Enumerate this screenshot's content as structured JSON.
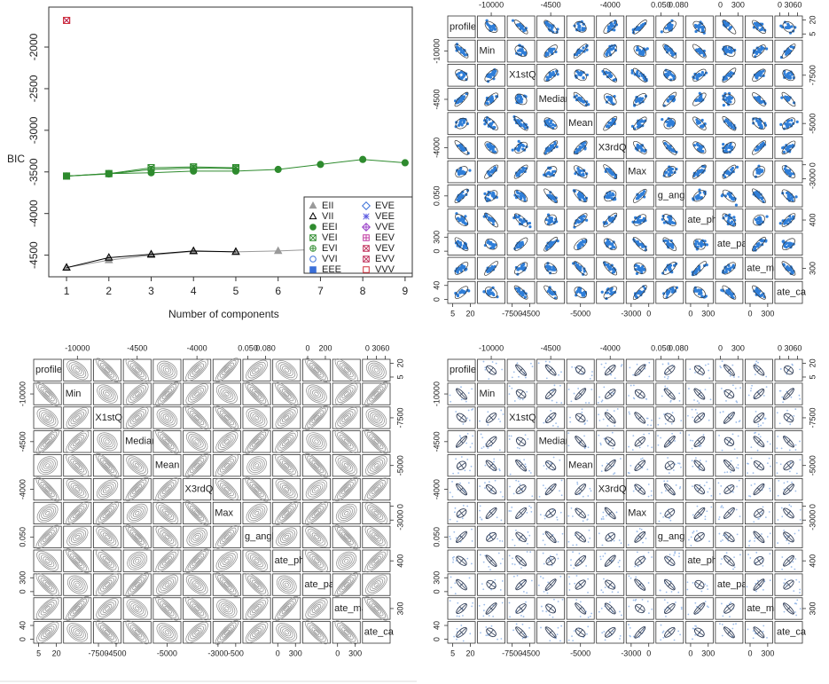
{
  "chart_data": [
    {
      "type": "line",
      "y_label": "BIC",
      "x_label": "Number of components",
      "x": [
        1,
        2,
        3,
        4,
        5,
        6,
        7,
        8,
        9
      ],
      "xlim": [
        0.58,
        9.17
      ],
      "ylim": [
        -4760,
        -1520
      ],
      "xticks": [
        1,
        2,
        3,
        4,
        5,
        6,
        7,
        8,
        9
      ],
      "yticks": [
        -2000,
        -2500,
        -3000,
        -3500,
        -4000,
        -4500
      ],
      "legend": "bottom-right",
      "series": [
        {
          "name": "EII",
          "color": "#9a9a9a",
          "symbol": "triangle",
          "filled": true,
          "values": [
            -4650,
            -4560,
            -4500,
            -4455,
            -4460,
            -4450,
            -4430,
            null,
            null
          ]
        },
        {
          "name": "VII",
          "color": "#000000",
          "symbol": "triangle",
          "filled": false,
          "values": [
            -4650,
            -4530,
            -4490,
            -4450,
            -4460,
            null,
            null,
            null,
            null
          ]
        },
        {
          "name": "EEI",
          "color": "#2e8b2e",
          "symbol": "circle",
          "filled": true,
          "values": [
            -3550,
            -3520,
            -3510,
            -3490,
            -3490,
            -3470,
            -3410,
            -3350,
            -3390
          ]
        },
        {
          "name": "VEI",
          "color": "#2e8b2e",
          "symbol": "x-square",
          "filled": false,
          "values": [
            -3550,
            -3520,
            -3450,
            -3440,
            -3450,
            null,
            null,
            null,
            null
          ]
        },
        {
          "name": "EVI",
          "color": "#2e8b2e",
          "symbol": "plus-circle",
          "filled": false,
          "values": [
            -3550,
            -3525,
            -3470,
            -3455,
            -3460,
            null,
            null,
            null,
            null
          ]
        },
        {
          "name": "VVI",
          "color": "#3a6fd8",
          "symbol": "circle",
          "filled": false,
          "values": [
            null,
            null,
            null,
            null,
            null,
            null,
            null,
            null,
            null
          ]
        },
        {
          "name": "EEE",
          "color": "#3a6fd8",
          "symbol": "square",
          "filled": true,
          "values": [
            null,
            null,
            null,
            null,
            null,
            null,
            null,
            null,
            null
          ]
        },
        {
          "name": "EVE",
          "color": "#3a6fd8",
          "symbol": "diamond",
          "filled": false,
          "values": [
            null,
            null,
            null,
            null,
            null,
            null,
            null,
            null,
            null
          ]
        },
        {
          "name": "VEE",
          "color": "#5a5ae0",
          "symbol": "asterisk",
          "filled": false,
          "values": [
            null,
            null,
            null,
            null,
            null,
            null,
            null,
            null,
            null
          ]
        },
        {
          "name": "VVE",
          "color": "#9a40c8",
          "symbol": "diamond-plus",
          "filled": false,
          "values": [
            null,
            null,
            null,
            null,
            null,
            null,
            null,
            null,
            null
          ]
        },
        {
          "name": "EEV",
          "color": "#c03aa0",
          "symbol": "plus-square",
          "filled": false,
          "values": [
            null,
            null,
            null,
            null,
            null,
            null,
            null,
            null,
            null
          ]
        },
        {
          "name": "VEV",
          "color": "#c0305a",
          "symbol": "x-square",
          "filled": false,
          "values": [
            -1680,
            null,
            null,
            null,
            null,
            null,
            null,
            null,
            null
          ]
        },
        {
          "name": "EVV",
          "color": "#c0305a",
          "symbol": "x-square",
          "filled": false,
          "values": [
            -1680,
            null,
            null,
            null,
            null,
            null,
            null,
            null,
            null
          ]
        },
        {
          "name": "VVV",
          "color": "#d0303a",
          "symbol": "square",
          "filled": false,
          "values": [
            -1680,
            null,
            null,
            null,
            null,
            null,
            null,
            null,
            null
          ]
        }
      ]
    },
    {
      "type": "scatter-matrix",
      "color": "#2f7ed8",
      "variables": [
        "profile",
        "Min",
        "X1stQ",
        "Median",
        "Mean",
        "X3rdQ",
        "Max",
        "g_angl",
        "ate_ph",
        "ate_pa",
        "ate_ma",
        "ate_ca"
      ],
      "top_ticks": [
        [],
        [
          -10000
        ],
        [],
        [
          -4500
        ],
        [],
        [
          -4000
        ],
        [],
        [
          {
            "value": 0.05,
            "label": "0.050"
          },
          {
            "value": 0.08,
            "label": "0.080"
          }
        ],
        [],
        [
          0,
          300
        ],
        [],
        [
          0,
          30,
          60
        ]
      ],
      "bottom_ticks": [
        [
          5,
          20
        ],
        [],
        [
          -7500,
          -4500
        ],
        [],
        [
          -5000
        ],
        [],
        [
          -3000,
          0
        ],
        [],
        [
          0,
          300
        ],
        [],
        [
          0,
          300
        ],
        []
      ],
      "left_ticks": [
        [],
        [
          -10000
        ],
        [],
        [
          -4500
        ],
        [],
        [
          -4000
        ],
        [],
        [
          {
            "value": 0.05,
            "label": "0.050"
          }
        ],
        [],
        [
          0,
          300
        ],
        [],
        [
          0,
          40
        ]
      ],
      "right_ticks": [
        [
          5,
          20
        ],
        [],
        [
          -7500
        ],
        [],
        [
          -5000
        ],
        [],
        [
          -3000,
          0
        ],
        [],
        [
          400
        ],
        [],
        [
          300
        ],
        []
      ]
    },
    {
      "type": "contour-matrix",
      "color": "#8a8a8a",
      "variables": [
        "profile",
        "Min",
        "X1stQ",
        "Median",
        "Mean",
        "X3rdQ",
        "Max",
        "g_angl",
        "ate_ph",
        "ate_pa",
        "ate_ma",
        "ate_ca"
      ],
      "top_ticks": [
        [],
        [
          -10000
        ],
        [],
        [
          -4500
        ],
        [],
        [
          -4000
        ],
        [],
        [
          {
            "value": 0.05,
            "label": "0.050"
          },
          {
            "value": 0.08,
            "label": "0.080"
          }
        ],
        [],
        [
          0,
          200
        ],
        [],
        [
          0,
          30,
          60
        ]
      ],
      "bottom_ticks": [
        [
          5,
          20
        ],
        [],
        [
          -7500,
          -4500
        ],
        [],
        [
          -5000
        ],
        [],
        [
          -3000,
          -500
        ],
        [],
        [
          0,
          300
        ],
        [],
        [
          0,
          300
        ],
        []
      ],
      "left_ticks": [
        [],
        [
          -10000
        ],
        [],
        [
          -4500
        ],
        [],
        [
          -4000
        ],
        [],
        [
          {
            "value": 0.05,
            "label": "0.050"
          }
        ],
        [],
        [
          0,
          300
        ],
        [],
        [
          0,
          40
        ]
      ],
      "right_ticks": [
        [
          5,
          20
        ],
        [],
        [
          -7500
        ],
        [],
        [
          -5000
        ],
        [],
        [
          -3000,
          0
        ],
        [],
        [
          400
        ],
        [],
        [
          300
        ],
        []
      ]
    },
    {
      "type": "ellipse-matrix",
      "color": "#33405a",
      "variables": [
        "profile",
        "Min",
        "X1stQ",
        "Median",
        "Mean",
        "X3rdQ",
        "Max",
        "g_angl",
        "ate_ph",
        "ate_pa",
        "ate_ma",
        "ate_ca"
      ],
      "top_ticks": [
        [],
        [
          -10000
        ],
        [],
        [
          -4500
        ],
        [],
        [
          -4000
        ],
        [],
        [
          {
            "value": 0.05,
            "label": "0.050"
          },
          {
            "value": 0.08,
            "label": "0.080"
          }
        ],
        [],
        [
          0,
          300
        ],
        [],
        [
          0,
          30,
          60
        ]
      ],
      "bottom_ticks": [
        [
          5,
          20
        ],
        [],
        [
          -7500,
          -4500
        ],
        [],
        [
          -5000
        ],
        [],
        [
          -3000,
          0
        ],
        [],
        [
          0,
          300
        ],
        [],
        [
          0,
          300
        ],
        []
      ],
      "left_ticks": [
        [],
        [
          -10000
        ],
        [],
        [
          -4500
        ],
        [],
        [
          -4000
        ],
        [],
        [
          {
            "value": 0.05,
            "label": "0.050"
          }
        ],
        [],
        [
          0,
          300
        ],
        [],
        [
          0,
          40
        ]
      ],
      "right_ticks": [
        [
          5,
          20
        ],
        [],
        [
          -7500
        ],
        [],
        [
          -5000
        ],
        [],
        [
          -3000,
          0
        ],
        [],
        [
          400
        ],
        [],
        [
          300
        ],
        []
      ]
    }
  ]
}
